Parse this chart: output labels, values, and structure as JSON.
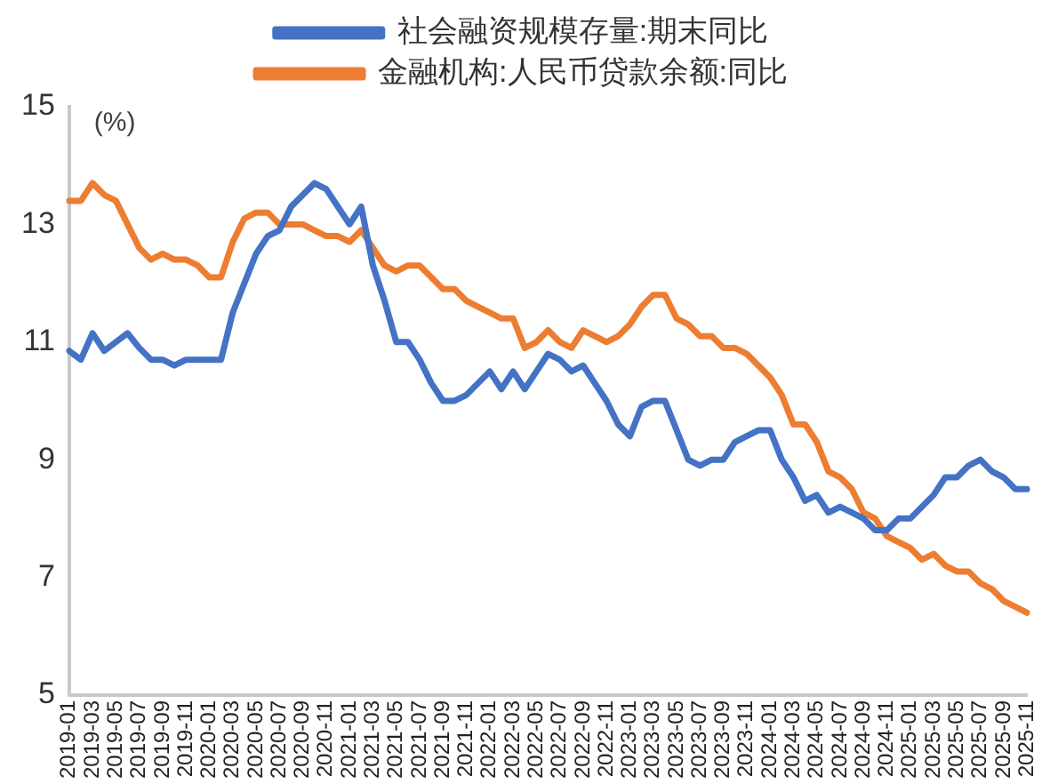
{
  "chart_data": {
    "type": "line",
    "categories": [
      "2019-01",
      null,
      "2019-03",
      null,
      "2019-05",
      null,
      "2019-07",
      null,
      "2019-09",
      null,
      "2019-11",
      null,
      "2020-01",
      null,
      "2020-03",
      null,
      "2020-05",
      null,
      "2020-07",
      null,
      "2020-09",
      null,
      "2020-11",
      null,
      "2021-01",
      null,
      "2021-03",
      null,
      "2021-05",
      null,
      "2021-07",
      null,
      "2021-09",
      null,
      "2021-11",
      null,
      "2022-01",
      null,
      "2022-03",
      null,
      "2022-05",
      null,
      "2022-07",
      null,
      "2022-09",
      null,
      "2022-11",
      null,
      "2023-01",
      null,
      "2023-03",
      null,
      "2023-05",
      null,
      "2023-07",
      null,
      "2023-09",
      null,
      "2023-11",
      null,
      "2024-01",
      null,
      "2024-03",
      null,
      "2024-05",
      null,
      "2024-07",
      null,
      "2024-09",
      null,
      "2024-11",
      null,
      "2025-01",
      null,
      "2025-03",
      null,
      "2025-05",
      null,
      "2025-07",
      null,
      "2025-09",
      null,
      "2025-11"
    ],
    "series": [
      {
        "name": "社会融资规模存量:期末同比",
        "color": "#4472c4",
        "values": [
          10.85,
          10.7,
          11.15,
          10.85,
          11.0,
          11.15,
          10.9,
          10.7,
          10.7,
          10.6,
          10.7,
          10.7,
          10.7,
          10.7,
          11.5,
          12.0,
          12.5,
          12.8,
          12.9,
          13.3,
          13.5,
          13.7,
          13.6,
          13.3,
          13.0,
          13.3,
          12.3,
          11.7,
          11.0,
          11.0,
          10.7,
          10.3,
          10.0,
          10.0,
          10.1,
          10.3,
          10.5,
          10.2,
          10.5,
          10.2,
          10.5,
          10.8,
          10.7,
          10.5,
          10.6,
          10.3,
          10.0,
          9.6,
          9.4,
          9.9,
          10.0,
          10.0,
          9.5,
          9.0,
          8.9,
          9.0,
          9.0,
          9.3,
          9.4,
          9.5,
          9.5,
          9.0,
          8.7,
          8.3,
          8.4,
          8.1,
          8.2,
          8.1,
          8.0,
          7.8,
          7.8,
          8.0,
          8.0,
          8.2,
          8.4,
          8.7,
          8.7,
          8.9,
          9.0,
          8.8,
          8.7,
          8.5,
          8.5
        ]
      },
      {
        "name": "金融机构:人民币贷款余额:同比",
        "color": "#ed7d31",
        "values": [
          13.4,
          13.4,
          13.7,
          13.5,
          13.4,
          13.0,
          12.6,
          12.4,
          12.5,
          12.4,
          12.4,
          12.3,
          12.1,
          12.1,
          12.7,
          13.1,
          13.2,
          13.2,
          13.0,
          13.0,
          13.0,
          12.9,
          12.8,
          12.8,
          12.7,
          12.9,
          12.6,
          12.3,
          12.2,
          12.3,
          12.3,
          12.1,
          11.9,
          11.9,
          11.7,
          11.6,
          11.5,
          11.4,
          11.4,
          10.9,
          11.0,
          11.2,
          11.0,
          10.9,
          11.2,
          11.1,
          11.0,
          11.1,
          11.3,
          11.6,
          11.8,
          11.8,
          11.4,
          11.3,
          11.1,
          11.1,
          10.9,
          10.9,
          10.8,
          10.6,
          10.4,
          10.1,
          9.6,
          9.6,
          9.3,
          8.8,
          8.7,
          8.5,
          8.1,
          8.0,
          7.7,
          7.6,
          7.5,
          7.3,
          7.4,
          7.2,
          7.1,
          7.1,
          6.9,
          6.8,
          6.6,
          6.5,
          6.4
        ]
      }
    ],
    "ylim": [
      5,
      15
    ],
    "yticks": [
      5,
      7,
      9,
      11,
      13,
      15
    ],
    "annotations": [
      "(%)"
    ],
    "grid": false,
    "legend": "top",
    "marker": "none",
    "line_style": "solid"
  }
}
